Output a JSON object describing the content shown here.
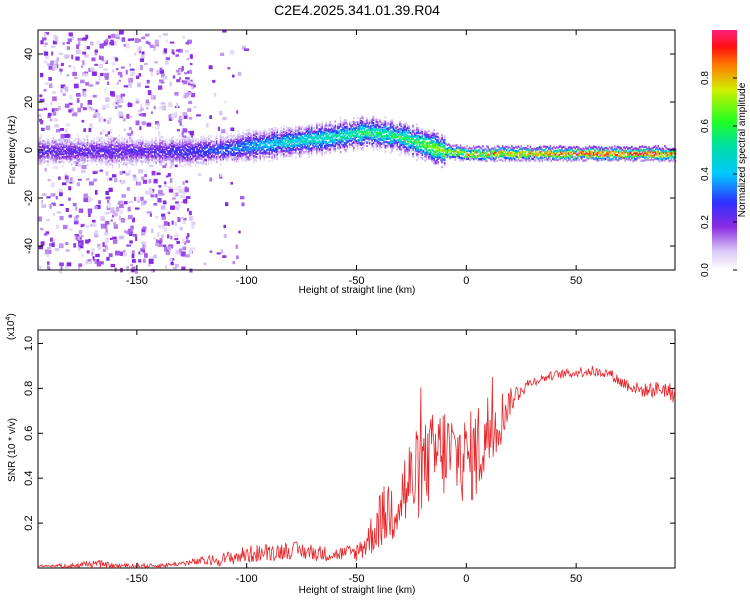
{
  "title": "C2E4.2025.341.01.39.R04",
  "chart_data": [
    {
      "type": "heatmap",
      "xlabel": "Height of straight line (km)",
      "ylabel": "Frequency (Hz)",
      "xlim": [
        -195,
        95
      ],
      "ylim": [
        -50,
        50
      ],
      "xticks": [
        -150,
        -100,
        -50,
        0,
        50
      ],
      "yticks": [
        -40,
        -20,
        0,
        20,
        40
      ],
      "colorbar": {
        "label": "Normalized spectral amplitude",
        "ticks": [
          "0.0",
          "0.2",
          "0.4",
          "0.6",
          "0.8"
        ],
        "range": [
          0,
          1
        ]
      },
      "ridge": {
        "description_x": [
          -195,
          -150,
          -120,
          -100,
          -80,
          -60,
          -45,
          -30,
          -20,
          -10,
          0,
          20,
          50,
          95
        ],
        "frequency": [
          0,
          0,
          0,
          2,
          4,
          6,
          8,
          6,
          3,
          0,
          -1,
          -1,
          -1,
          -1
        ],
        "amplitude": [
          0.25,
          0.25,
          0.3,
          0.4,
          0.5,
          0.55,
          0.6,
          0.6,
          0.65,
          0.8,
          0.85,
          0.9,
          1.0,
          1.0
        ]
      }
    },
    {
      "type": "line",
      "xlabel": "Height of straight line (km)",
      "ylabel": "SNR (10 * v/v)",
      "yscale_label": "(x10",
      "yscale_exp": "4",
      "yscale_close": ")",
      "xlim": [
        -195,
        95
      ],
      "ylim": [
        0,
        1.06
      ],
      "xticks": [
        -150,
        -100,
        -50,
        0,
        50
      ],
      "yticks": [
        "0.2",
        "0.4",
        "0.6",
        "0.8",
        "1.0"
      ],
      "series": [
        {
          "name": "SNR",
          "color": "#e8262a",
          "x": [
            -195,
            -180,
            -170,
            -160,
            -150,
            -140,
            -130,
            -120,
            -110,
            -100,
            -90,
            -80,
            -70,
            -60,
            -50,
            -45,
            -40,
            -35,
            -30,
            -25,
            -20,
            -15,
            -10,
            -5,
            0,
            5,
            10,
            15,
            20,
            25,
            30,
            40,
            50,
            55,
            60,
            65,
            70,
            80,
            90,
            95
          ],
          "values": [
            0.01,
            0.01,
            0.02,
            0.01,
            0.01,
            0.01,
            0.02,
            0.03,
            0.04,
            0.06,
            0.07,
            0.08,
            0.07,
            0.06,
            0.07,
            0.12,
            0.2,
            0.26,
            0.32,
            0.38,
            0.44,
            0.5,
            0.52,
            0.5,
            0.48,
            0.52,
            0.6,
            0.66,
            0.74,
            0.8,
            0.83,
            0.86,
            0.87,
            0.88,
            0.87,
            0.87,
            0.83,
            0.79,
            0.8,
            0.77
          ],
          "noise": [
            0.003,
            0.01,
            0.02,
            0.01,
            0.01,
            0.01,
            0.01,
            0.02,
            0.03,
            0.04,
            0.04,
            0.04,
            0.04,
            0.03,
            0.04,
            0.08,
            0.12,
            0.16,
            0.2,
            0.22,
            0.2,
            0.2,
            0.22,
            0.2,
            0.2,
            0.22,
            0.2,
            0.14,
            0.06,
            0.04,
            0.02,
            0.02,
            0.02,
            0.03,
            0.02,
            0.02,
            0.03,
            0.03,
            0.04,
            0.04
          ]
        }
      ]
    }
  ]
}
